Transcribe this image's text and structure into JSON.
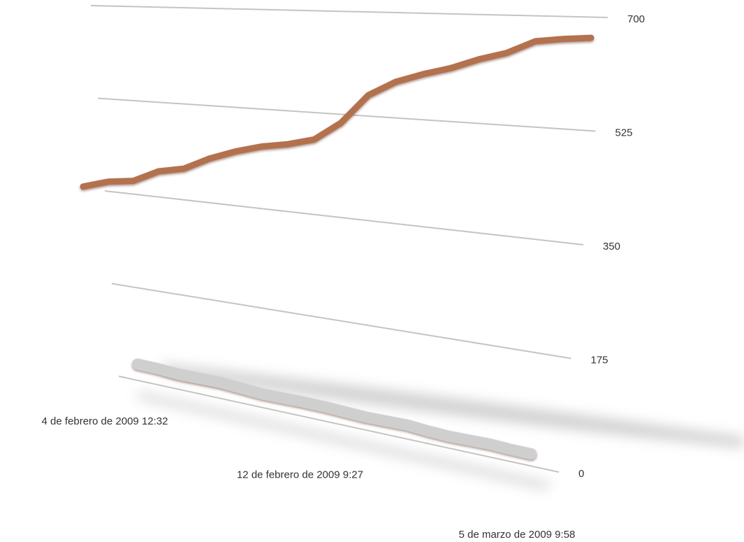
{
  "chart_data": {
    "type": "line",
    "categories": [
      "4 de febrero de 2009 12:32",
      null,
      null,
      null,
      null,
      null,
      null,
      null,
      null,
      "12 de febrero de 2009 9:27",
      null,
      null,
      null,
      null,
      null,
      null,
      null,
      null,
      null,
      "5 de marzo de 2009 9:58"
    ],
    "series": [
      {
        "color": "#b3714e",
        "values": [
          350,
          365,
          372,
          395,
          405,
          428,
          445,
          458,
          466,
          478,
          510,
          560,
          585,
          600,
          612,
          628,
          640,
          660,
          665,
          668
        ]
      },
      {
        "color": "#cfcfcf",
        "values": [
          22,
          22,
          20,
          21,
          22,
          20,
          18,
          19,
          20,
          20,
          19,
          18,
          19,
          20,
          18,
          17,
          18,
          19,
          18,
          18
        ]
      }
    ],
    "ylim": [
      0,
      700
    ],
    "yticks": [
      0,
      175,
      350,
      525,
      700
    ],
    "grid": true
  }
}
